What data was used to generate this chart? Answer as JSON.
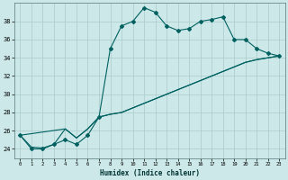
{
  "xlabel": "Humidex (Indice chaleur)",
  "bg_color": "#cce8e8",
  "grid_color": "#aacccc",
  "line_color": "#006060",
  "xlim": [
    -0.5,
    23.5
  ],
  "ylim": [
    23,
    40
  ],
  "yticks": [
    24,
    26,
    28,
    30,
    32,
    34,
    36,
    38
  ],
  "xticks": [
    0,
    1,
    2,
    3,
    4,
    5,
    6,
    7,
    8,
    9,
    10,
    11,
    12,
    13,
    14,
    15,
    16,
    17,
    18,
    19,
    20,
    21,
    22,
    23
  ],
  "peaked_line": {
    "x": [
      0,
      1,
      2,
      3,
      4,
      5,
      6,
      7,
      8,
      9,
      10,
      11,
      12,
      13,
      14,
      15,
      16,
      17,
      18,
      19,
      20,
      21,
      22,
      23
    ],
    "y": [
      25.5,
      24.0,
      24.0,
      24.5,
      25.0,
      24.5,
      25.5,
      27.5,
      35.0,
      37.5,
      38.0,
      39.5,
      39.0,
      37.5,
      37.0,
      37.2,
      38.0,
      38.2,
      38.5,
      36.0,
      36.0,
      35.0,
      34.5,
      34.2
    ]
  },
  "diagonal1": {
    "x": [
      0,
      1,
      2,
      3,
      4,
      5,
      6,
      7,
      8,
      9,
      10,
      11,
      12,
      13,
      14,
      15,
      16,
      17,
      18,
      19,
      20,
      21,
      22,
      23
    ],
    "y": [
      25.5,
      24.2,
      24.1,
      24.5,
      26.2,
      25.2,
      26.2,
      27.5,
      27.8,
      28.0,
      28.5,
      29.0,
      29.5,
      30.0,
      30.5,
      31.0,
      31.5,
      32.0,
      32.5,
      33.0,
      33.5,
      33.8,
      34.0,
      34.2
    ]
  },
  "diagonal2": {
    "x": [
      0,
      4,
      5,
      6,
      7,
      8,
      9,
      10,
      11,
      12,
      13,
      14,
      15,
      16,
      17,
      18,
      19,
      20,
      21,
      22,
      23
    ],
    "y": [
      25.5,
      26.2,
      25.2,
      26.2,
      27.5,
      27.8,
      28.0,
      28.5,
      29.0,
      29.5,
      30.0,
      30.5,
      31.0,
      31.5,
      32.0,
      32.5,
      33.0,
      33.5,
      33.8,
      34.0,
      34.2
    ]
  }
}
